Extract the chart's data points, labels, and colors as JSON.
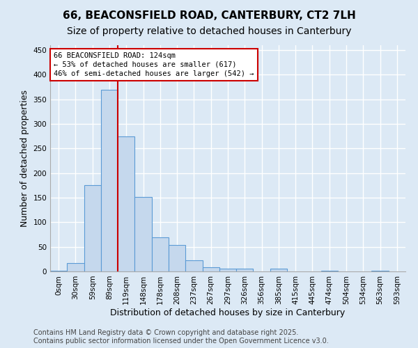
{
  "title_line1": "66, BEACONSFIELD ROAD, CANTERBURY, CT2 7LH",
  "title_line2": "Size of property relative to detached houses in Canterbury",
  "xlabel": "Distribution of detached houses by size in Canterbury",
  "ylabel": "Number of detached properties",
  "categories": [
    "0sqm",
    "30sqm",
    "59sqm",
    "89sqm",
    "119sqm",
    "148sqm",
    "178sqm",
    "208sqm",
    "237sqm",
    "267sqm",
    "297sqm",
    "326sqm",
    "356sqm",
    "385sqm",
    "415sqm",
    "445sqm",
    "474sqm",
    "504sqm",
    "534sqm",
    "563sqm",
    "593sqm"
  ],
  "values": [
    2,
    17,
    175,
    370,
    275,
    152,
    70,
    54,
    23,
    9,
    5,
    6,
    0,
    6,
    0,
    0,
    1,
    0,
    0,
    1,
    0
  ],
  "bar_color": "#c5d8ed",
  "bar_edge_color": "#5b9bd5",
  "background_color": "#dce9f5",
  "grid_color": "#ffffff",
  "annotation_text": "66 BEACONSFIELD ROAD: 124sqm\n← 53% of detached houses are smaller (617)\n46% of semi-detached houses are larger (542) →",
  "annotation_box_color": "#ffffff",
  "annotation_box_edge_color": "#cc0000",
  "vline_color": "#cc0000",
  "ylim": [
    0,
    460
  ],
  "yticks": [
    0,
    50,
    100,
    150,
    200,
    250,
    300,
    350,
    400,
    450
  ],
  "footer_line1": "Contains HM Land Registry data © Crown copyright and database right 2025.",
  "footer_line2": "Contains public sector information licensed under the Open Government Licence v3.0.",
  "title_fontsize": 11,
  "subtitle_fontsize": 10,
  "axis_label_fontsize": 9,
  "tick_fontsize": 7.5,
  "footer_fontsize": 7
}
